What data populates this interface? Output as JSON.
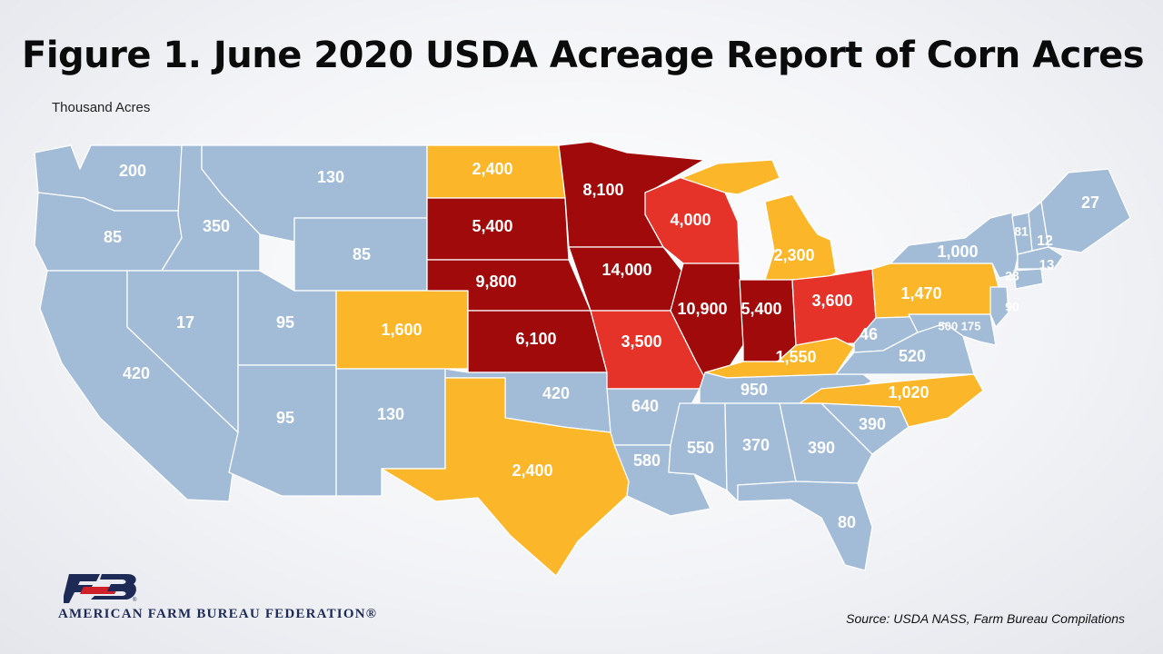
{
  "title": "Figure 1. June 2020 USDA Acreage Report of Corn Acres",
  "units_label": "Thousand Acres",
  "source": "Source: USDA NASS, Farm Bureau Compilations",
  "organization": "AMERICAN FARM BUREAU FEDERATION®",
  "logo_icon": "fb-logo-icon",
  "colors": {
    "light": "#a2bcd8",
    "yellow": "#fbb62a",
    "red": "#e6332a",
    "darkred": "#a10a0a"
  },
  "states": {
    "WA": "200",
    "OR": "85",
    "CA": "420",
    "ID": "350",
    "NV": "17",
    "MT": "130",
    "WY": "85",
    "UT": "95",
    "AZ": "95",
    "CO": "1,600",
    "NM": "130",
    "ND": "2,400",
    "SD": "5,400",
    "NE": "9,800",
    "KS": "6,100",
    "OK": "420",
    "TX": "2,400",
    "MN": "8,100",
    "IA": "14,000",
    "MO": "3,500",
    "AR": "640",
    "LA": "580",
    "WI": "4,000",
    "IL": "10,900",
    "MS": "550",
    "MI": "2,300",
    "IN": "5,400",
    "KY": "1,550",
    "TN": "950",
    "AL": "370",
    "OH": "3,600",
    "GA": "390",
    "FL": "80",
    "SC": "390",
    "NC": "1,020",
    "WV": "46",
    "VA": "520",
    "PA": "1,470",
    "NY": "1,000",
    "VT": "81",
    "NH": "12",
    "ME": "27",
    "MA": "13",
    "CT": "23",
    "NJ": "90",
    "DE_MD": "500 175"
  }
}
